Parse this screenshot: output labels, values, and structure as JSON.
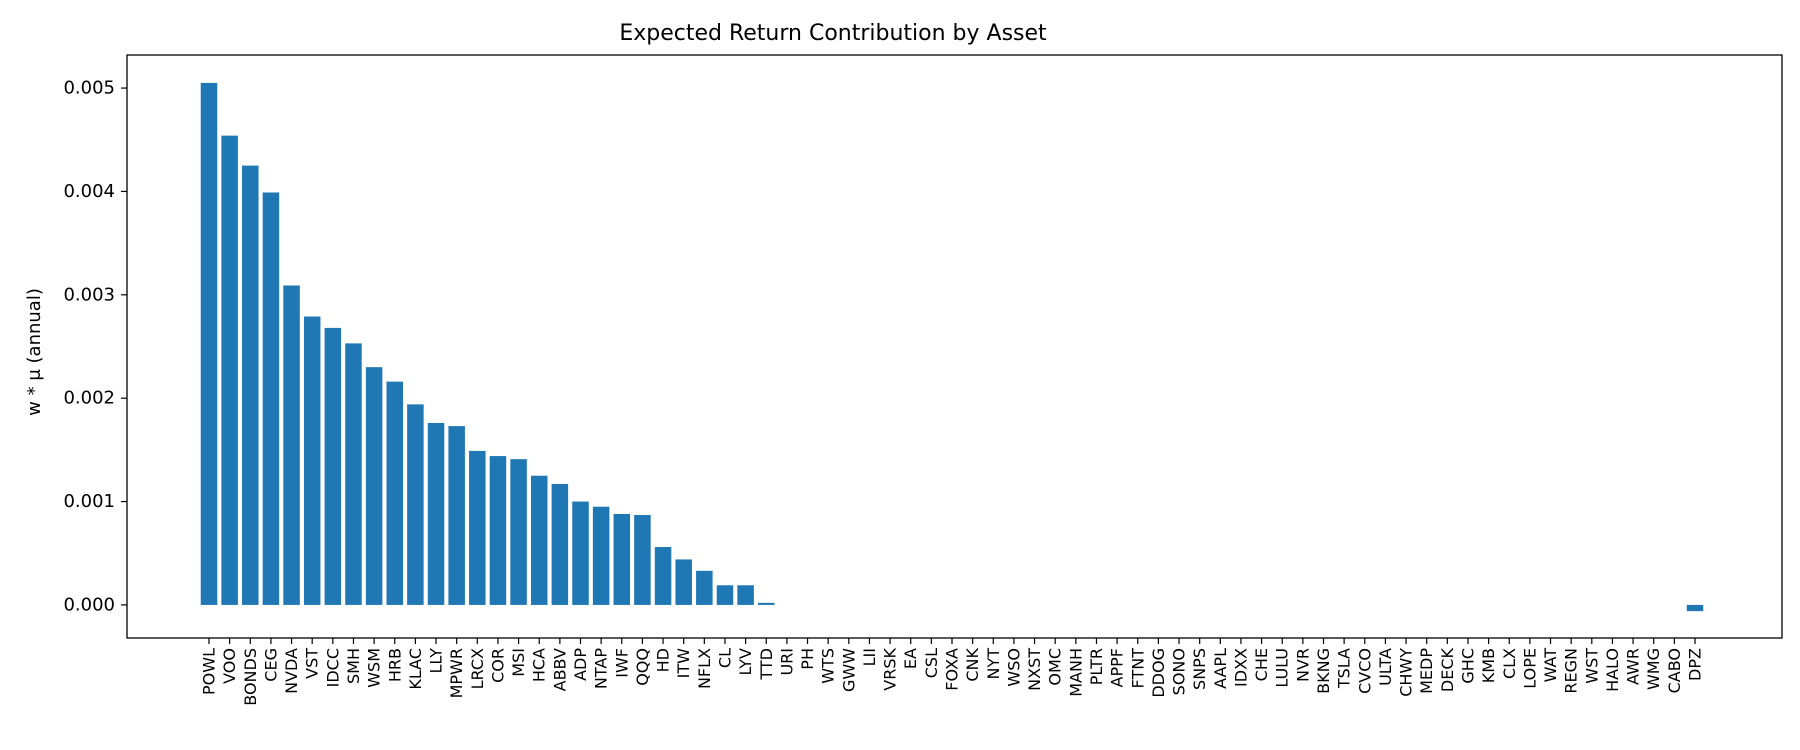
{
  "chart_data": {
    "type": "bar",
    "title": "Expected Return Contribution by Asset",
    "xlabel": "",
    "ylabel": "w * μ (annual)",
    "ylim": [
      -0.00032,
      0.00532
    ],
    "yticks": [
      0.0,
      0.001,
      0.002,
      0.003,
      0.004,
      0.005
    ],
    "ytick_labels": [
      "0.000",
      "0.001",
      "0.002",
      "0.003",
      "0.004",
      "0.005"
    ],
    "grid": false,
    "bar_color": "#1f77b4",
    "categories": [
      "POWL",
      "VOO",
      "BONDS",
      "CEG",
      "NVDA",
      "VST",
      "IDCC",
      "SMH",
      "WSM",
      "HRB",
      "KLAC",
      "LLY",
      "MPWR",
      "LRCX",
      "COR",
      "MSI",
      "HCA",
      "ABBV",
      "ADP",
      "NTAP",
      "IWF",
      "QQQ",
      "HD",
      "ITW",
      "NFLX",
      "CL",
      "LYV",
      "TTD",
      "URI",
      "PH",
      "WTS",
      "GWW",
      "LII",
      "VRSK",
      "EA",
      "CSL",
      "FOXA",
      "CNK",
      "NYT",
      "WSO",
      "NXST",
      "OMC",
      "MANH",
      "PLTR",
      "APPF",
      "FTNT",
      "DDOG",
      "SONO",
      "SNPS",
      "AAPL",
      "IDXX",
      "CHE",
      "LULU",
      "NVR",
      "BKNG",
      "TSLA",
      "CVCO",
      "ULTA",
      "CHWY",
      "MEDP",
      "DECK",
      "GHC",
      "KMB",
      "CLX",
      "LOPE",
      "WAT",
      "REGN",
      "WST",
      "HALO",
      "AWR",
      "WMG",
      "CABO",
      "DPZ"
    ],
    "values": [
      0.00505,
      0.00454,
      0.00425,
      0.00399,
      0.00309,
      0.00279,
      0.00268,
      0.00253,
      0.0023,
      0.00216,
      0.00194,
      0.00176,
      0.00173,
      0.00149,
      0.00144,
      0.00141,
      0.00125,
      0.00117,
      0.001,
      0.00095,
      0.00088,
      0.00087,
      0.00056,
      0.00044,
      0.00033,
      0.00019,
      0.00019,
      2e-05,
      0,
      0,
      0,
      0,
      0,
      0,
      0,
      0,
      0,
      0,
      0,
      0,
      0,
      0,
      0,
      0,
      0,
      0,
      0,
      0,
      0,
      0,
      0,
      0,
      0,
      0,
      0,
      0,
      0,
      0,
      0,
      0,
      0,
      0,
      0,
      0,
      0,
      0,
      0,
      0,
      0,
      0,
      0,
      0,
      -6e-05
    ]
  }
}
